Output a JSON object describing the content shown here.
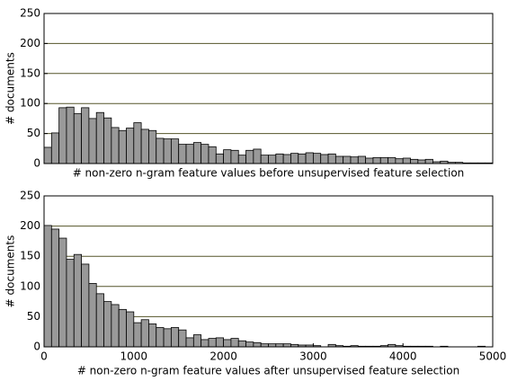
{
  "chart_data": [
    {
      "type": "histogram",
      "color": "#999999",
      "grid": true,
      "xlabel": "# non-zero n-gram feature values before unsupervised feature selection",
      "ylabel": "# documents",
      "bins": [
        0,
        83.3,
        166.7,
        250,
        333.3,
        416.7,
        500,
        583.3,
        666.7,
        750,
        833.3,
        916.7,
        1000,
        1083.3,
        1166.7,
        1250,
        1333.3,
        1416.7,
        1500,
        1583.3,
        1666.7,
        1750,
        1833.3,
        1916.7,
        2000,
        2083.3,
        2166.7,
        2250,
        2333.3,
        2416.7,
        2500,
        2583.3,
        2666.7,
        2750,
        2833.3,
        2916.7,
        3000,
        3083.3,
        3166.7,
        3250,
        3333.3,
        3416.7,
        3500,
        3583.3,
        3666.7,
        3750,
        3833.3,
        3916.7,
        4000,
        4083.3,
        4166.7,
        4250,
        4333.3,
        4416.7,
        4500,
        4583.3,
        4666.7,
        4750,
        4833.3,
        4916.7,
        5000
      ],
      "values": [
        27,
        51,
        93,
        94,
        83,
        93,
        75,
        85,
        76,
        60,
        55,
        59,
        68,
        57,
        55,
        42,
        41,
        41,
        32,
        32,
        35,
        32,
        28,
        16,
        23,
        22,
        14,
        22,
        24,
        14,
        14,
        16,
        15,
        17,
        16,
        18,
        17,
        15,
        16,
        12,
        12,
        11,
        12,
        9,
        10,
        10,
        10,
        8,
        9,
        7,
        6,
        7,
        3,
        4,
        2,
        2,
        1,
        1,
        1,
        1
      ],
      "xlim": [
        0,
        5000
      ],
      "ylim": [
        0,
        250
      ],
      "yticks": [
        0,
        50,
        100,
        150,
        200,
        250
      ]
    },
    {
      "type": "histogram",
      "color": "#999999",
      "grid": true,
      "xlabel": "# non-zero n-gram feature values after unsupervised feature selection",
      "ylabel": "# documents",
      "bins": [
        0,
        83.3,
        166.7,
        250,
        333.3,
        416.7,
        500,
        583.3,
        666.7,
        750,
        833.3,
        916.7,
        1000,
        1083.3,
        1166.7,
        1250,
        1333.3,
        1416.7,
        1500,
        1583.3,
        1666.7,
        1750,
        1833.3,
        1916.7,
        2000,
        2083.3,
        2166.7,
        2250,
        2333.3,
        2416.7,
        2500,
        2583.3,
        2666.7,
        2750,
        2833.3,
        2916.7,
        3000,
        3083.3,
        3166.7,
        3250,
        3333.3,
        3416.7,
        3500,
        3583.3,
        3666.7,
        3750,
        3833.3,
        3916.7,
        4000,
        4083.3,
        4166.7,
        4250,
        4333.3,
        4416.7,
        4500,
        4583.3,
        4666.7,
        4750,
        4833.3,
        4916.7,
        5000
      ],
      "values": [
        201,
        195,
        180,
        145,
        153,
        137,
        105,
        88,
        75,
        70,
        62,
        58,
        40,
        45,
        38,
        32,
        30,
        32,
        28,
        15,
        20,
        12,
        14,
        15,
        12,
        14,
        10,
        8,
        7,
        5,
        5,
        5,
        5,
        4,
        3,
        3,
        2,
        0,
        4,
        2,
        1,
        2,
        1,
        1,
        1,
        2,
        4,
        2,
        1,
        1,
        1,
        1,
        0,
        1,
        0,
        0,
        0,
        0,
        1,
        0
      ],
      "xlim": [
        0,
        5000
      ],
      "xticks": [
        0,
        1000,
        2000,
        3000,
        4000,
        5000
      ],
      "ylim": [
        0,
        250
      ],
      "yticks": [
        0,
        50,
        100,
        150,
        200,
        250
      ]
    }
  ]
}
